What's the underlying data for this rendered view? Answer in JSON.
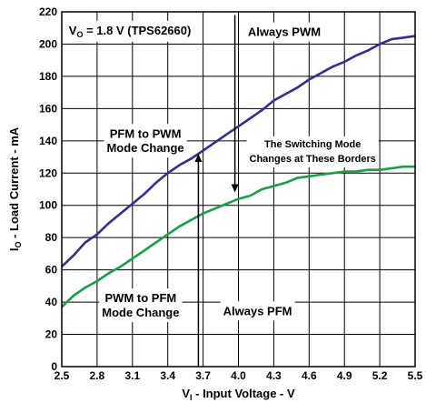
{
  "chart_data": {
    "type": "line",
    "title": "",
    "xlabel": "V_I - Input Voltage - V",
    "ylabel": "I_O - Load Current - mA",
    "xlim": [
      2.5,
      5.5
    ],
    "ylim": [
      0,
      220
    ],
    "x_ticks": [
      "2.5",
      "2.8",
      "3.1",
      "3.4",
      "3.7",
      "4.0",
      "4.3",
      "4.6",
      "4.9",
      "5.2",
      "5.5"
    ],
    "y_ticks": [
      "0",
      "20",
      "40",
      "60",
      "80",
      "100",
      "120",
      "140",
      "160",
      "180",
      "200",
      "220"
    ],
    "grid": true,
    "colors": {
      "pfm_to_pwm": "#2e3192",
      "pwm_to_pfm": "#16a046"
    },
    "series": [
      {
        "key": "pfm_to_pwm",
        "x": [
          2.5,
          2.6,
          2.7,
          2.8,
          2.9,
          3.0,
          3.1,
          3.2,
          3.3,
          3.4,
          3.5,
          3.6,
          3.7,
          3.8,
          3.9,
          4.0,
          4.1,
          4.2,
          4.3,
          4.4,
          4.5,
          4.6,
          4.7,
          4.8,
          4.9,
          5.0,
          5.1,
          5.2,
          5.3,
          5.4,
          5.5
        ],
        "y": [
          62,
          69,
          77,
          82,
          89,
          95,
          101,
          107,
          114,
          120,
          125,
          129,
          134,
          139,
          144,
          149,
          154,
          159,
          165,
          169,
          173,
          178,
          182,
          186,
          189,
          193,
          196,
          200,
          203,
          204,
          205
        ]
      },
      {
        "key": "pwm_to_pfm",
        "x": [
          2.5,
          2.6,
          2.7,
          2.8,
          2.9,
          3.0,
          3.1,
          3.2,
          3.3,
          3.4,
          3.5,
          3.6,
          3.7,
          3.8,
          3.9,
          4.0,
          4.1,
          4.2,
          4.3,
          4.4,
          4.5,
          4.6,
          4.7,
          4.8,
          4.9,
          5.0,
          5.1,
          5.2,
          5.3,
          5.4,
          5.5
        ],
        "y": [
          37,
          44,
          49,
          53,
          58,
          62,
          67,
          72,
          77,
          82,
          87,
          91,
          95,
          98,
          101,
          104,
          106,
          110,
          112,
          114,
          117,
          118,
          119,
          120,
          121,
          121,
          122,
          122,
          123,
          124,
          124
        ]
      }
    ],
    "annotations": {
      "condition_main": "V",
      "condition_sub": "O",
      "condition_rest": " = 1.8 V (TPS62660)",
      "always_pwm": "Always PWM",
      "pfm_to_pwm_line1": "PFM to PWM",
      "pfm_to_pwm_line2": "Mode Change",
      "borders_line1": "The Switching Mode",
      "borders_line2": "Changes at These Borders",
      "pwm_to_pfm_line1": "PWM to PFM",
      "pwm_to_pfm_line2": "Mode Change",
      "always_pfm": "Always PFM"
    },
    "axis_title_parts": {
      "x_main": "V",
      "x_sub": "I",
      "x_rest": " - Input Voltage - V",
      "y_main": "I",
      "y_sub": "O",
      "y_rest": " - Load Current - mA"
    }
  }
}
